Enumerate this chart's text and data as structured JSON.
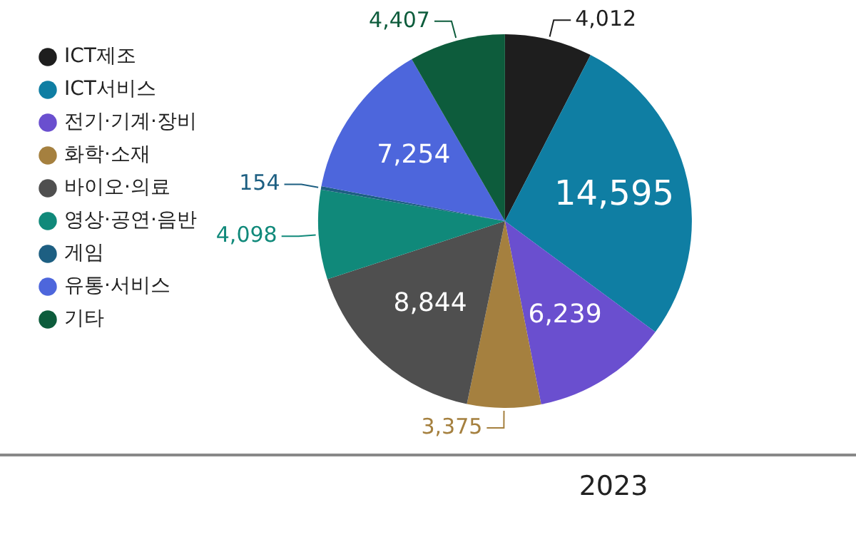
{
  "chart_data": {
    "type": "pie",
    "categories": [
      "ICT제조",
      "ICT서비스",
      "전기·기계·장비",
      "화학·소재",
      "바이오·의료",
      "영상·공연·음반",
      "게임",
      "유통·서비스",
      "기타"
    ],
    "values": [
      4012,
      14595,
      6239,
      3375,
      8844,
      4098,
      154,
      7254,
      4407
    ],
    "colors": [
      "#1e1e1e",
      "#0f7ea3",
      "#6a4fcf",
      "#a5803f",
      "#4f4f4f",
      "#10897a",
      "#1d5f82",
      "#4d66dc",
      "#0d5c3c"
    ],
    "value_labels": [
      "4,012",
      "14,595",
      "6,239",
      "3,375",
      "8,844",
      "4,098",
      "154",
      "7,254",
      "4,407"
    ],
    "legend": "left",
    "annotations": [
      "2023"
    ]
  }
}
